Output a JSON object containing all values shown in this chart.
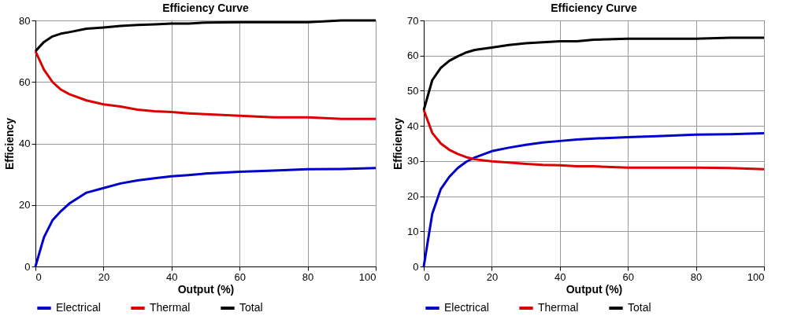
{
  "chart_data": [
    {
      "type": "line",
      "title": "Efficiency Curve",
      "xlabel": "Output (%)",
      "ylabel": "Efficiency",
      "x": [
        0,
        2.5,
        5,
        7.5,
        10,
        15,
        20,
        25,
        30,
        35,
        40,
        45,
        50,
        60,
        70,
        80,
        90,
        100
      ],
      "series": [
        {
          "name": "Electrical",
          "color": "#0000cc",
          "values": [
            0,
            9.5,
            15,
            18,
            20.5,
            24,
            25.5,
            27,
            28,
            28.7,
            29.3,
            29.7,
            30.2,
            30.8,
            31.2,
            31.6,
            31.7,
            32
          ]
        },
        {
          "name": "Thermal",
          "color": "#dd0000",
          "values": [
            70,
            64,
            60,
            57.5,
            56,
            54,
            52.7,
            52,
            51,
            50.5,
            50.2,
            49.8,
            49.5,
            49,
            48.5,
            48.5,
            48,
            48
          ]
        },
        {
          "name": "Total",
          "color": "#000000",
          "values": [
            70,
            73,
            74.8,
            75.7,
            76.2,
            77.3,
            77.7,
            78.2,
            78.5,
            78.7,
            79,
            79,
            79.3,
            79.4,
            79.4,
            79.4,
            80,
            80
          ]
        }
      ],
      "xlim": [
        0,
        100
      ],
      "xticks": [
        0,
        20,
        40,
        60,
        80,
        100
      ],
      "ylim": [
        0,
        80
      ],
      "yticks": [
        0,
        20,
        40,
        60,
        80
      ],
      "grid": true,
      "legend": "bottom",
      "marker": "none",
      "line_style": "solid"
    },
    {
      "type": "line",
      "title": "Efficiency Curve",
      "xlabel": "Output (%)",
      "ylabel": "Efficiency",
      "x": [
        0,
        2.5,
        5,
        7.5,
        10,
        12.5,
        15,
        20,
        25,
        30,
        35,
        40,
        45,
        50,
        60,
        70,
        80,
        90,
        100
      ],
      "series": [
        {
          "name": "Electrical",
          "color": "#0000cc",
          "values": [
            0,
            15,
            22,
            25.5,
            28,
            29.8,
            31,
            32.8,
            33.8,
            34.6,
            35.3,
            35.7,
            36.1,
            36.4,
            36.8,
            37.1,
            37.5,
            37.6,
            37.9
          ]
        },
        {
          "name": "Thermal",
          "color": "#dd0000",
          "values": [
            44.5,
            38,
            35,
            33.2,
            32,
            31.1,
            30.5,
            29.9,
            29.6,
            29.2,
            28.9,
            28.8,
            28.5,
            28.5,
            28.1,
            28.1,
            28.1,
            28,
            27.7
          ]
        },
        {
          "name": "Total",
          "color": "#000000",
          "values": [
            44.5,
            53,
            56.5,
            58.5,
            59.8,
            60.9,
            61.6,
            62.3,
            63,
            63.5,
            63.8,
            64.1,
            64.1,
            64.5,
            64.8,
            64.8,
            64.8,
            65.1,
            65.1
          ]
        }
      ],
      "xlim": [
        0,
        100
      ],
      "xticks": [
        0,
        20,
        40,
        60,
        80,
        100
      ],
      "ylim": [
        0,
        70
      ],
      "yticks": [
        0,
        10,
        20,
        30,
        40,
        50,
        60,
        70
      ],
      "grid": true,
      "legend": "bottom",
      "marker": "none",
      "line_style": "solid"
    }
  ]
}
